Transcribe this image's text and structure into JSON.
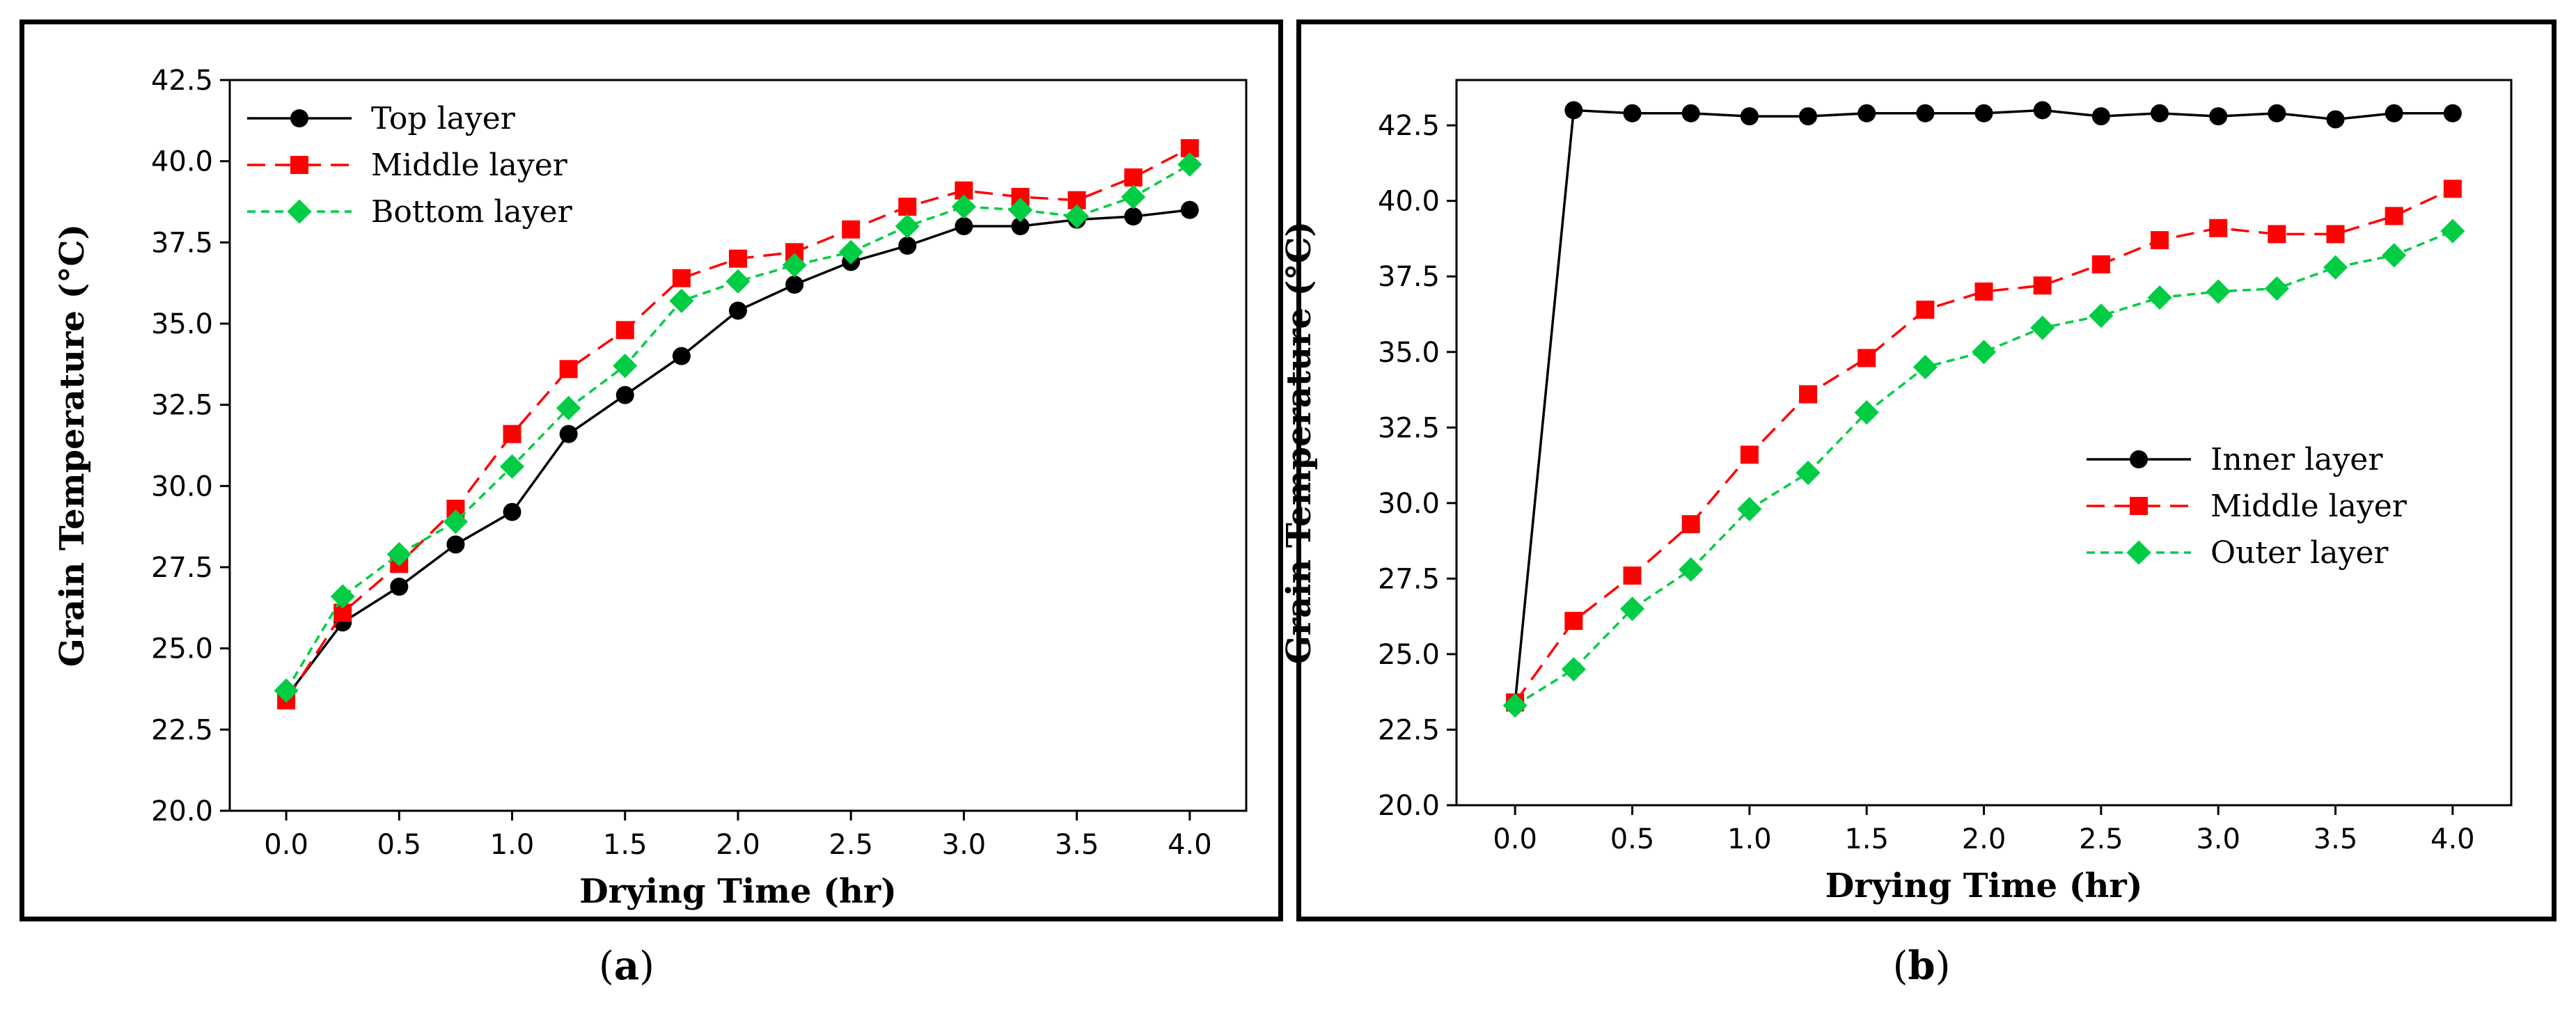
{
  "chart_data": [
    {
      "type": "line",
      "panel_label": "a",
      "title": "",
      "xlabel": "Drying Time (hr)",
      "ylabel": "Grain Temperature (°C)",
      "xlim": [
        -0.25,
        4.25
      ],
      "ylim": [
        20.0,
        42.5
      ],
      "xticks": [
        "0.0",
        "0.5",
        "1.0",
        "1.5",
        "2.0",
        "2.5",
        "3.0",
        "3.5",
        "4.0"
      ],
      "yticks": [
        "20.0",
        "22.5",
        "25.0",
        "27.5",
        "30.0",
        "32.5",
        "35.0",
        "37.5",
        "40.0",
        "42.5"
      ],
      "legend_position": "top-left",
      "x": [
        0,
        0.25,
        0.5,
        0.75,
        1.0,
        1.25,
        1.5,
        1.75,
        2.0,
        2.25,
        2.5,
        2.75,
        3.0,
        3.25,
        3.5,
        3.75,
        4.0
      ],
      "series": [
        {
          "name": "Top layer",
          "color": "#000000",
          "marker": "circle",
          "dash": "solid",
          "values": [
            23.5,
            25.8,
            26.9,
            28.2,
            29.2,
            31.6,
            32.8,
            34.0,
            35.4,
            36.2,
            36.9,
            37.4,
            38.0,
            38.0,
            38.2,
            38.3,
            38.5
          ]
        },
        {
          "name": "Middle layer",
          "color": "#ff0000",
          "marker": "square",
          "dash": "dashed",
          "values": [
            23.4,
            26.1,
            27.6,
            29.3,
            31.6,
            33.6,
            34.8,
            36.4,
            37.0,
            37.2,
            37.9,
            38.6,
            39.1,
            38.9,
            38.8,
            39.5,
            40.4
          ]
        },
        {
          "name": "Bottom layer",
          "color": "#00cc44",
          "marker": "diamond",
          "dash": "dotted",
          "values": [
            23.7,
            26.6,
            27.9,
            28.9,
            30.6,
            32.4,
            33.7,
            35.7,
            36.3,
            36.8,
            37.2,
            38.0,
            38.6,
            38.5,
            38.3,
            38.9,
            39.9
          ]
        }
      ]
    },
    {
      "type": "line",
      "panel_label": "b",
      "title": "",
      "xlabel": "Drying Time (hr)",
      "ylabel": "Grain Temperature (°C)",
      "xlim": [
        -0.25,
        4.25
      ],
      "ylim": [
        20.0,
        44.0
      ],
      "xticks": [
        "0.0",
        "0.5",
        "1.0",
        "1.5",
        "2.0",
        "2.5",
        "3.0",
        "3.5",
        "4.0"
      ],
      "yticks": [
        "20.0",
        "22.5",
        "25.0",
        "27.5",
        "30.0",
        "32.5",
        "35.0",
        "37.5",
        "40.0",
        "42.5"
      ],
      "legend_position": "center-right",
      "x": [
        0,
        0.25,
        0.5,
        0.75,
        1.0,
        1.25,
        1.5,
        1.75,
        2.0,
        2.25,
        2.5,
        2.75,
        3.0,
        3.25,
        3.5,
        3.75,
        4.0
      ],
      "series": [
        {
          "name": "Inner layer",
          "color": "#000000",
          "marker": "circle",
          "dash": "solid",
          "values": [
            23.4,
            43.0,
            42.9,
            42.9,
            42.8,
            42.8,
            42.9,
            42.9,
            42.9,
            43.0,
            42.8,
            42.9,
            42.8,
            42.9,
            42.7,
            42.9,
            42.9
          ]
        },
        {
          "name": "Middle layer",
          "color": "#ff0000",
          "marker": "square",
          "dash": "dashed",
          "values": [
            23.4,
            26.1,
            27.6,
            29.3,
            31.6,
            33.6,
            34.8,
            36.4,
            37.0,
            37.2,
            37.9,
            38.7,
            39.1,
            38.9,
            38.9,
            39.5,
            40.4
          ]
        },
        {
          "name": "Outer layer",
          "color": "#00cc44",
          "marker": "diamond",
          "dash": "dotted",
          "values": [
            23.3,
            24.5,
            26.5,
            27.8,
            29.8,
            31.0,
            33.0,
            34.5,
            35.0,
            35.8,
            36.2,
            36.8,
            37.0,
            37.1,
            37.8,
            38.2,
            39.0
          ]
        }
      ]
    }
  ]
}
